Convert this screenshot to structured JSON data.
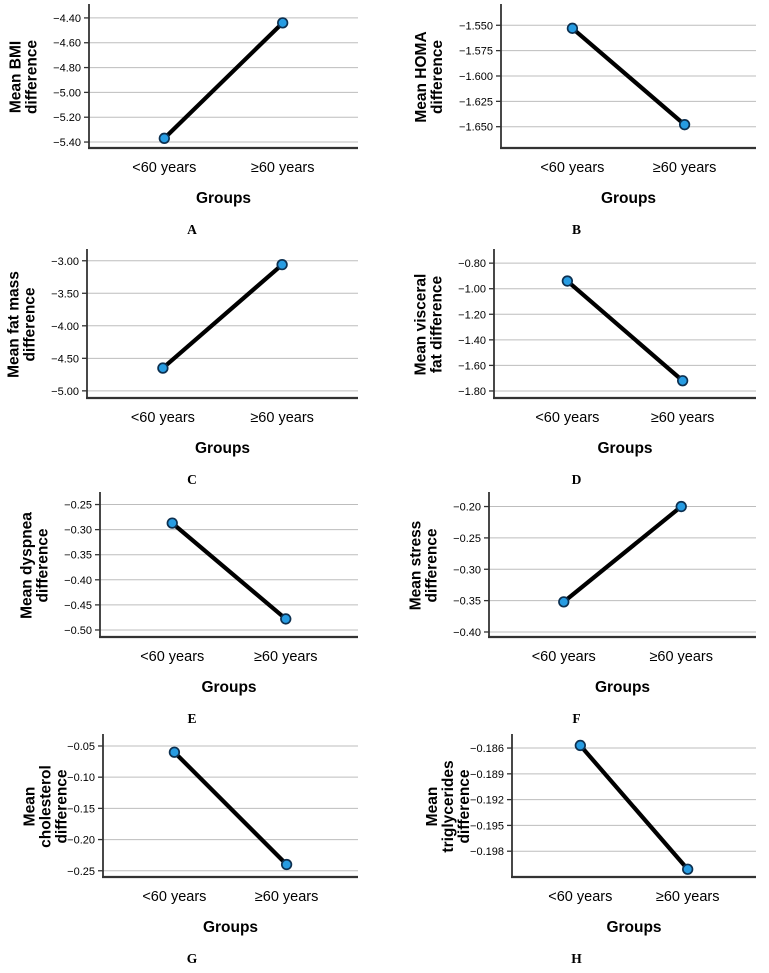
{
  "page": {
    "background": "#ffffff"
  },
  "style": {
    "marker_fill": "#279CE2",
    "marker_stroke": "#0D3050",
    "line_color": "#000000",
    "grid_color": "#BDBDBD",
    "axis_color": "#333333",
    "text_color": "#000000"
  },
  "chart_data": [
    {
      "type": "line",
      "panel_label": "A",
      "title": "",
      "ylabel": "Mean BMI difference",
      "ylabel_lines": [
        "Mean BMI",
        "difference"
      ],
      "xlabel": "Groups",
      "categories": [
        "<60 years",
        "≥60 years"
      ],
      "values": [
        -5.37,
        -4.44
      ],
      "yticks": [
        -4.4,
        -4.6,
        -4.8,
        -5.0,
        -5.2,
        -5.4
      ],
      "ytick_labels": [
        "−4.40",
        "−4.60",
        "−4.80",
        "−5.00",
        "−5.20",
        "−5.40"
      ],
      "ylim": [
        -5.448,
        -4.304
      ],
      "grid": true,
      "legend": "none"
    },
    {
      "type": "line",
      "panel_label": "B",
      "title": "",
      "ylabel": "Mean HOMA difference",
      "ylabel_lines": [
        "Mean HOMA",
        "difference"
      ],
      "xlabel": "Groups",
      "categories": [
        "<60 years",
        "≥60 years"
      ],
      "values": [
        -1.553,
        -1.648
      ],
      "yticks": [
        -1.55,
        -1.575,
        -1.6,
        -1.625,
        -1.65
      ],
      "ytick_labels": [
        "−1.550",
        "−1.575",
        "−1.600",
        "−1.625",
        "−1.650"
      ],
      "ylim": [
        -1.671,
        -1.531
      ],
      "grid": true,
      "legend": "none"
    },
    {
      "type": "line",
      "panel_label": "C",
      "title": "",
      "ylabel": "Mean fat mass difference",
      "ylabel_lines": [
        "Mean fat mass",
        "difference"
      ],
      "xlabel": "Groups",
      "categories": [
        "<60 years",
        "≥60 years"
      ],
      "values": [
        -4.65,
        -3.06
      ],
      "yticks": [
        -3.0,
        -3.5,
        -4.0,
        -4.5,
        -5.0
      ],
      "ytick_labels": [
        "−3.00",
        "−3.50",
        "−4.00",
        "−4.50",
        "−5.00"
      ],
      "ylim": [
        -5.11,
        -2.85
      ],
      "grid": true,
      "legend": "none"
    },
    {
      "type": "line",
      "panel_label": "D",
      "title": "",
      "ylabel": "Mean visceral fat difference",
      "ylabel_lines": [
        "Mean visceral",
        "fat difference"
      ],
      "xlabel": "Groups",
      "categories": [
        "<60 years",
        "≥60 years"
      ],
      "values": [
        -0.94,
        -1.72
      ],
      "yticks": [
        -0.8,
        -1.0,
        -1.2,
        -1.4,
        -1.6,
        -1.8
      ],
      "ytick_labels": [
        "−0.80",
        "−1.00",
        "−1.20",
        "−1.40",
        "−1.60",
        "−1.80"
      ],
      "ylim": [
        -1.855,
        -0.705
      ],
      "grid": true,
      "legend": "none"
    },
    {
      "type": "line",
      "panel_label": "E",
      "title": "",
      "ylabel": "Mean dyspnea difference",
      "ylabel_lines": [
        "Mean dyspnea",
        "difference"
      ],
      "xlabel": "Groups",
      "categories": [
        "<60 years",
        "≥60 years"
      ],
      "values": [
        -0.287,
        -0.478
      ],
      "yticks": [
        -0.25,
        -0.3,
        -0.35,
        -0.4,
        -0.45,
        -0.5
      ],
      "ytick_labels": [
        "−0.25",
        "−0.30",
        "−0.35",
        "−0.40",
        "−0.45",
        "−0.50"
      ],
      "ylim": [
        -0.514,
        -0.229
      ],
      "grid": true,
      "legend": "none"
    },
    {
      "type": "line",
      "panel_label": "F",
      "title": "",
      "ylabel": "Mean stress difference",
      "ylabel_lines": [
        "Mean stress",
        "difference"
      ],
      "xlabel": "Groups",
      "categories": [
        "<60 years",
        "≥60 years"
      ],
      "values": [
        -0.352,
        -0.2
      ],
      "yticks": [
        -0.2,
        -0.25,
        -0.3,
        -0.35,
        -0.4
      ],
      "ytick_labels": [
        "−0.20",
        "−0.25",
        "−0.30",
        "−0.35",
        "−0.40"
      ],
      "ylim": [
        -0.408,
        -0.18
      ],
      "grid": true,
      "legend": "none"
    },
    {
      "type": "line",
      "panel_label": "G",
      "title": "",
      "ylabel": "Mean cholesterol difference",
      "ylabel_lines": [
        "Mean",
        "cholesterol",
        "difference"
      ],
      "xlabel": "Groups",
      "categories": [
        "<60 years",
        "≥60 years"
      ],
      "values": [
        -0.06,
        -0.24
      ],
      "yticks": [
        -0.05,
        -0.1,
        -0.15,
        -0.2,
        -0.25
      ],
      "ytick_labels": [
        "−0.05",
        "−0.10",
        "−0.15",
        "−0.20",
        "−0.25"
      ],
      "ylim": [
        -0.26,
        -0.034
      ],
      "grid": true,
      "legend": "none"
    },
    {
      "type": "line",
      "panel_label": "H",
      "title": "",
      "ylabel": "Mean triglycerides difference",
      "ylabel_lines": [
        "Mean",
        "triglycerides",
        "difference"
      ],
      "xlabel": "Groups",
      "categories": [
        "<60 years",
        "≥60 years"
      ],
      "values": [
        -0.1857,
        -0.2001
      ],
      "yticks": [
        -0.186,
        -0.189,
        -0.192,
        -0.195,
        -0.198
      ],
      "ytick_labels": [
        "−0.186",
        "−0.189",
        "−0.192",
        "−0.195",
        "−0.198"
      ],
      "ylim": [
        -0.201,
        -0.1846
      ],
      "grid": true,
      "legend": "none"
    }
  ]
}
